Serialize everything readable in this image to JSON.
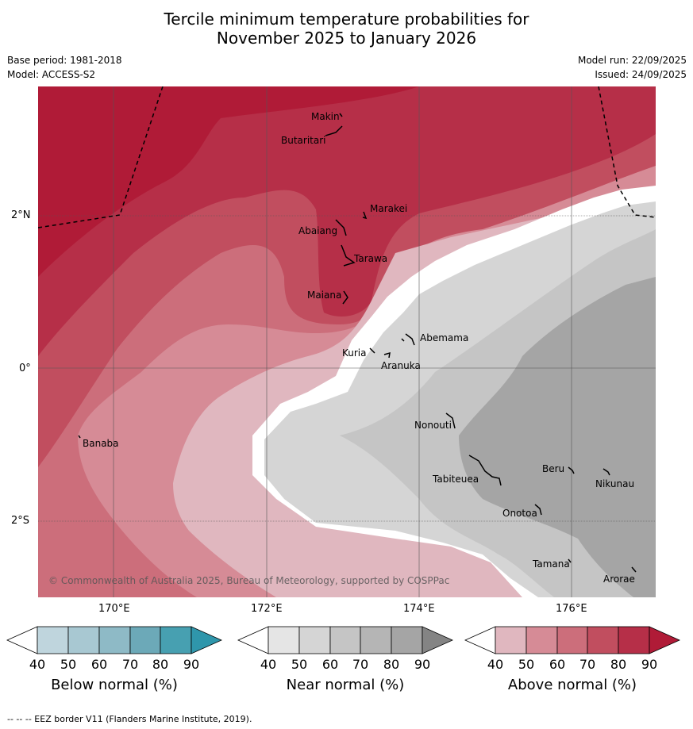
{
  "title": {
    "line1": "Tercile minimum temperature probabilities for",
    "line2": "November 2025 to January 2026"
  },
  "meta": {
    "base_period": "Base period: 1981-2018",
    "model": "Model: ACCESS-S2",
    "model_run": "Model run: 22/09/2025",
    "issued": "Issued: 24/09/2025"
  },
  "map": {
    "copyright": "© Commonwealth of Australia 2025, Bureau of Meteorology, supported by COSPPac",
    "lon_labels": [
      "170°E",
      "172°E",
      "174°E",
      "176°E"
    ],
    "lat_labels": [
      "2°N",
      "0°",
      "2°S"
    ],
    "islands": [
      "Makin",
      "Butaritari",
      "Marakei",
      "Abaiang",
      "Tarawa",
      "Maiana",
      "Abemama",
      "Kuria",
      "Aranuka",
      "Nonouti",
      "Banaba",
      "Beru",
      "Nikunau",
      "Tabiteuea",
      "Onotoa",
      "Tamana",
      "Arorae"
    ],
    "colors": {
      "above": [
        "#ffffff",
        "#e0b7bf",
        "#d68b96",
        "#cc6e7b",
        "#c14e5f",
        "#b62f48",
        "#b01b37"
      ],
      "near": [
        "#ffffff",
        "#e5e5e5",
        "#d5d5d5",
        "#c5c5c5",
        "#b5b5b5",
        "#a5a5a5",
        "#848484"
      ],
      "below": [
        "#ffffff",
        "#bfd5dd",
        "#a8c8d2",
        "#8ebac6",
        "#6ca9b8",
        "#47a0b1",
        "#2f96ab"
      ]
    }
  },
  "colorbars": {
    "ticks": [
      "40",
      "50",
      "60",
      "70",
      "80",
      "90"
    ],
    "below_label": "Below normal (%)",
    "near_label": "Near normal (%)",
    "above_label": "Above normal (%)"
  },
  "footer": {
    "eez_note": "--  --  -- EEZ border V11 (Flanders Marine Institute, 2019)."
  }
}
